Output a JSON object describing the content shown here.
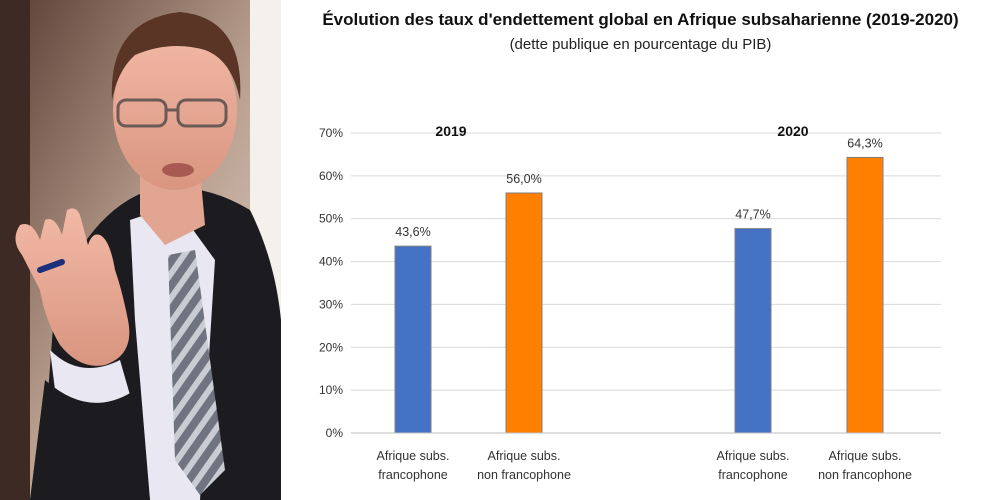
{
  "photo": {
    "description_icon": "person-photo"
  },
  "chart_data": {
    "type": "bar",
    "title": "Évolution des taux d'endettement global en Afrique subsaharienne (2019-2020)",
    "subtitle": "(dette publique en pourcentage du PIB)",
    "groups": [
      "2019",
      "2020"
    ],
    "categories": [
      [
        "Afrique subs.",
        "francophone"
      ],
      [
        "Afrique subs.",
        "non francophone"
      ],
      [
        "Afrique subs.",
        "francophone"
      ],
      [
        "Afrique subs.",
        "non francophone"
      ]
    ],
    "values": [
      43.6,
      56.0,
      47.7,
      64.3
    ],
    "value_labels": [
      "43,6%",
      "56,0%",
      "47,7%",
      "64,3%"
    ],
    "group_index": [
      0,
      0,
      1,
      1
    ],
    "colors": [
      "#4472C4",
      "#FF7F00",
      "#4472C4",
      "#FF7F00"
    ],
    "border_color": "#7f7f7f",
    "yticks": [
      "0%",
      "10%",
      "20%",
      "30%",
      "40%",
      "50%",
      "60%",
      "70%"
    ],
    "ylim": [
      0,
      70
    ],
    "grid": true,
    "xlabel": "",
    "ylabel": ""
  }
}
